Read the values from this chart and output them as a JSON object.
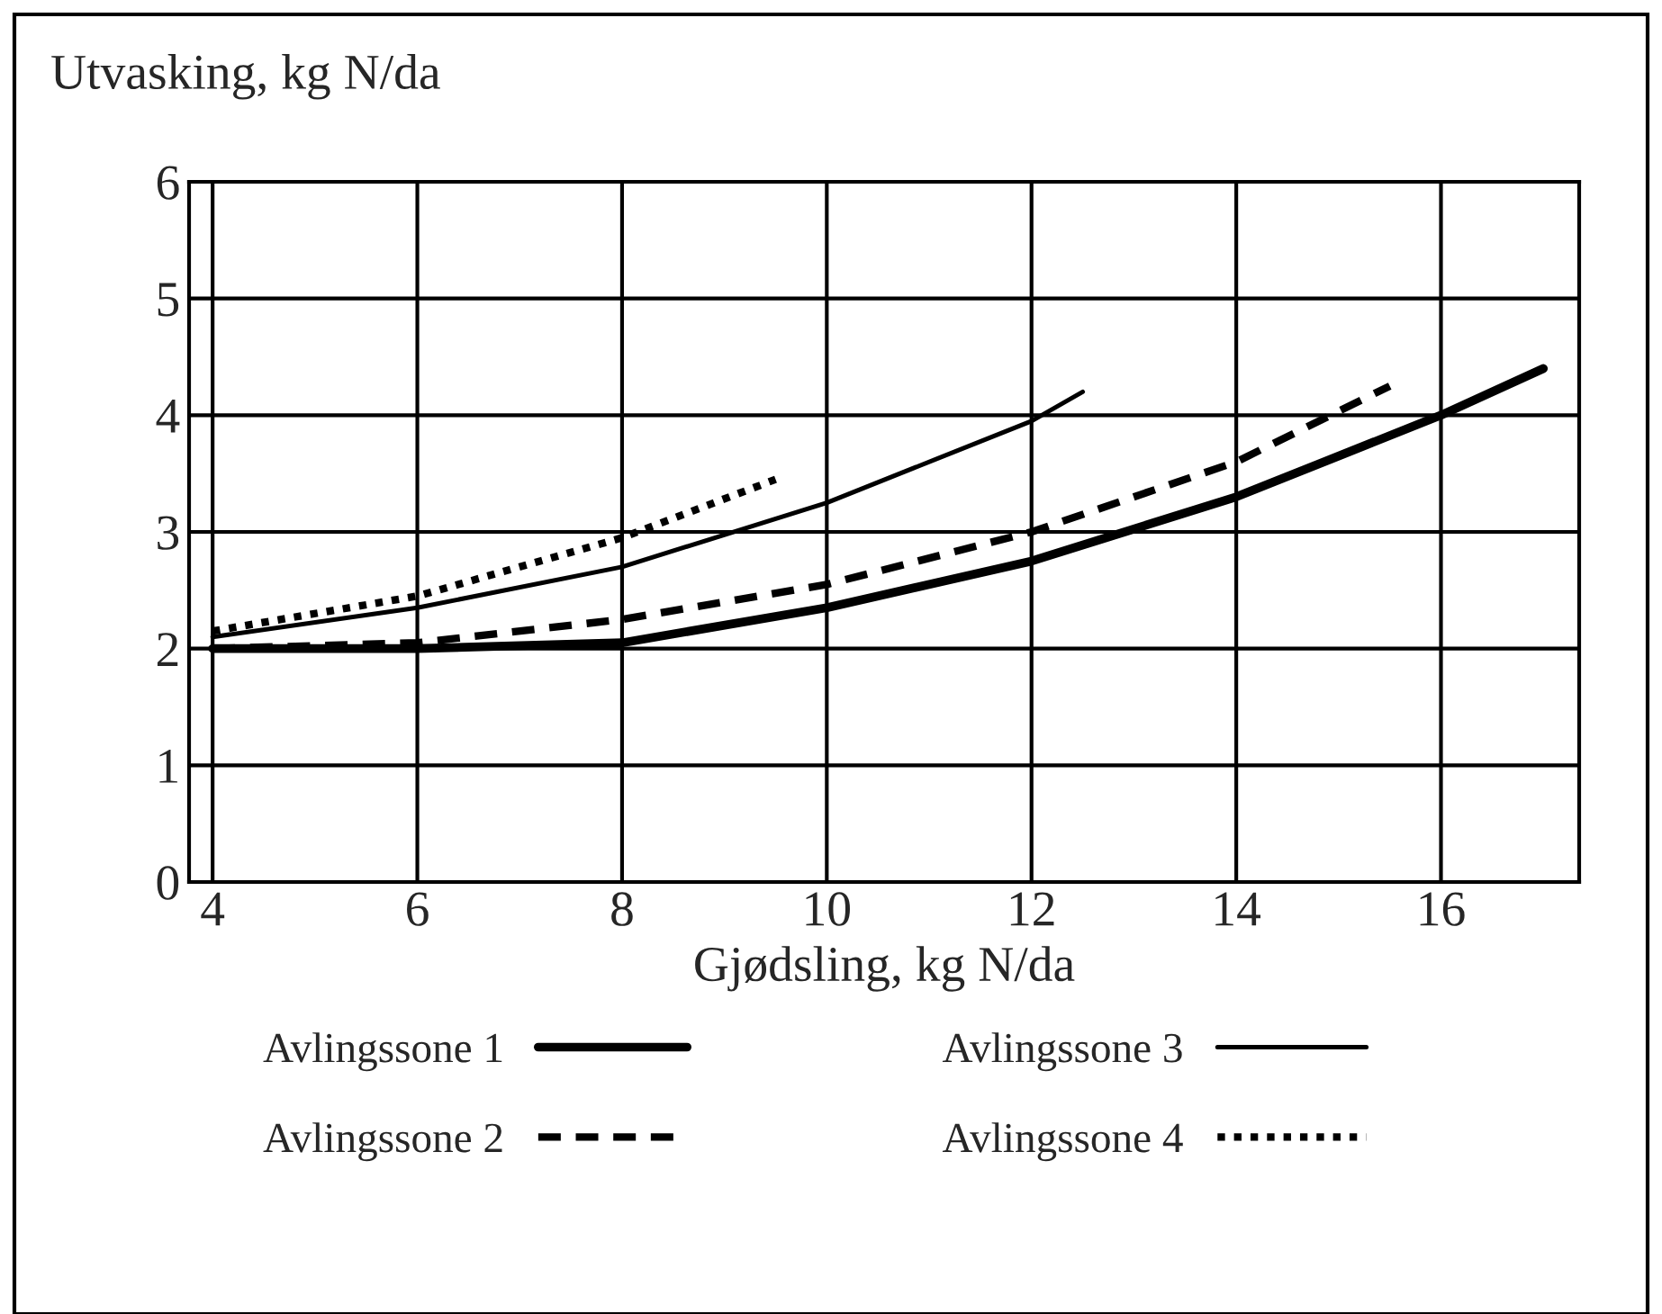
{
  "chart_data": {
    "type": "line",
    "xlabel": "Gjødsling, kg N/da",
    "ylabel": "Utvasking, kg N/da",
    "xlim": [
      3.77,
      17.35
    ],
    "xticks": [
      4,
      6,
      8,
      10,
      12,
      14,
      16
    ],
    "ylim": [
      0,
      6
    ],
    "yticks": [
      0,
      1,
      2,
      3,
      4,
      5,
      6
    ],
    "grid": true,
    "legend": "bottom",
    "marker": "none",
    "series": [
      {
        "name": "Avlingssone 1",
        "color": "#000000",
        "line_style": "solid",
        "x": [
          4,
          6,
          8,
          10,
          12,
          14,
          16,
          17
        ],
        "values": [
          2.0,
          2.0,
          2.05,
          2.35,
          2.75,
          3.3,
          4.0,
          4.4
        ]
      },
      {
        "name": "Avlingssone 2",
        "color": "#000000",
        "line_style": "dashed",
        "x": [
          4,
          6,
          8,
          10,
          12,
          14,
          15.5
        ],
        "values": [
          2.0,
          2.05,
          2.25,
          2.55,
          3.0,
          3.6,
          4.25
        ]
      },
      {
        "name": "Avlingssone 3",
        "color": "#000000",
        "line_style": "solid",
        "x": [
          4,
          6,
          8,
          10,
          12,
          12.5
        ],
        "values": [
          2.1,
          2.35,
          2.7,
          3.25,
          3.95,
          4.2
        ]
      },
      {
        "name": "Avlingssone 4",
        "color": "#000000",
        "line_style": "dotted",
        "x": [
          4,
          6,
          8,
          9.5
        ],
        "values": [
          2.15,
          2.45,
          2.95,
          3.45
        ]
      }
    ]
  }
}
